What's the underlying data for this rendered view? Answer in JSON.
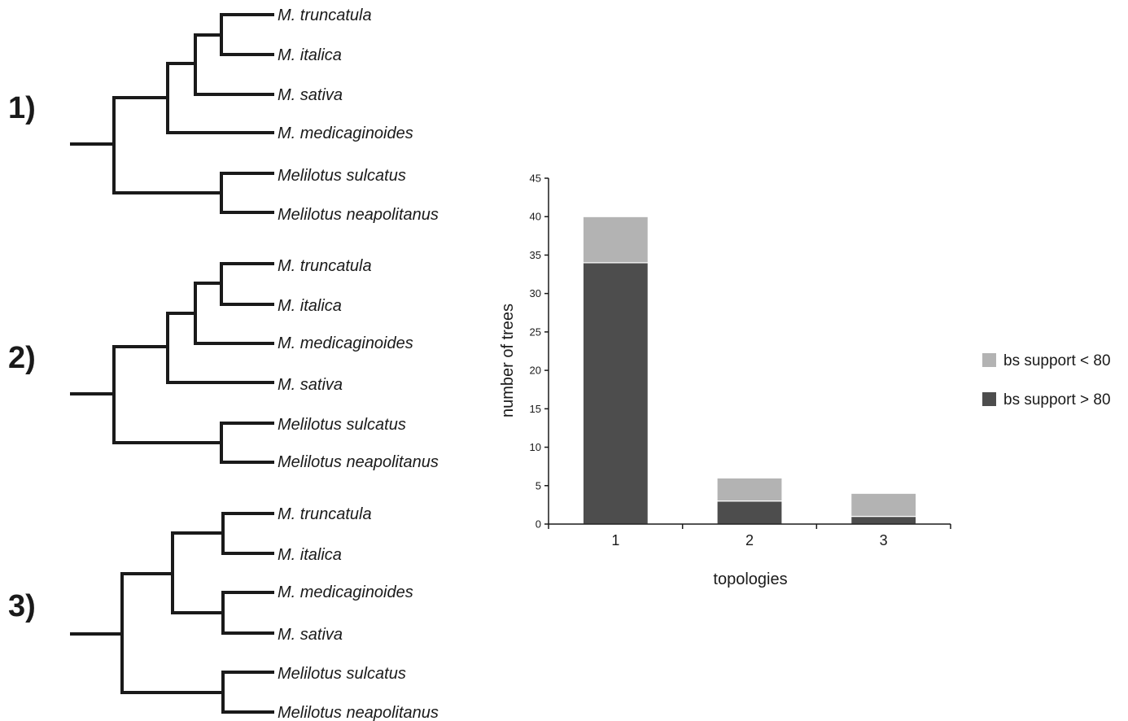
{
  "trees": [
    {
      "label": "1)",
      "taxa": [
        "M. truncatula",
        "M. italica",
        "M. sativa",
        "M. medicaginoides",
        "Melilotus sulcatus",
        "Melilotus neapolitanus"
      ]
    },
    {
      "label": "2)",
      "taxa": [
        "M. truncatula",
        "M. italica",
        "M. medicaginoides",
        "M. sativa",
        "Melilotus sulcatus",
        "Melilotus neapolitanus"
      ]
    },
    {
      "label": "3)",
      "taxa": [
        "M. truncatula",
        "M. italica",
        "M. medicaginoides",
        "M. sativa",
        "Melilotus sulcatus",
        "Melilotus neapolitanus"
      ]
    }
  ],
  "chart_data": {
    "type": "bar",
    "stacked": true,
    "categories": [
      "1",
      "2",
      "3"
    ],
    "series": [
      {
        "name": "bs support > 80",
        "values": [
          34,
          3,
          1
        ],
        "color": "#4d4d4d"
      },
      {
        "name": "bs support < 80",
        "values": [
          6,
          3,
          3
        ],
        "color": "#b3b3b3"
      }
    ],
    "xlabel": "topologies",
    "ylabel": "number of trees",
    "ylim": [
      0,
      45
    ],
    "yticks": [
      "0",
      "5",
      "10",
      "15",
      "20",
      "25",
      "30",
      "35",
      "40",
      "45"
    ],
    "legend": [
      {
        "label": "bs support < 80",
        "color": "#b3b3b3"
      },
      {
        "label": "bs support > 80",
        "color": "#4d4d4d"
      }
    ],
    "legend_position": "right",
    "grid": false
  }
}
